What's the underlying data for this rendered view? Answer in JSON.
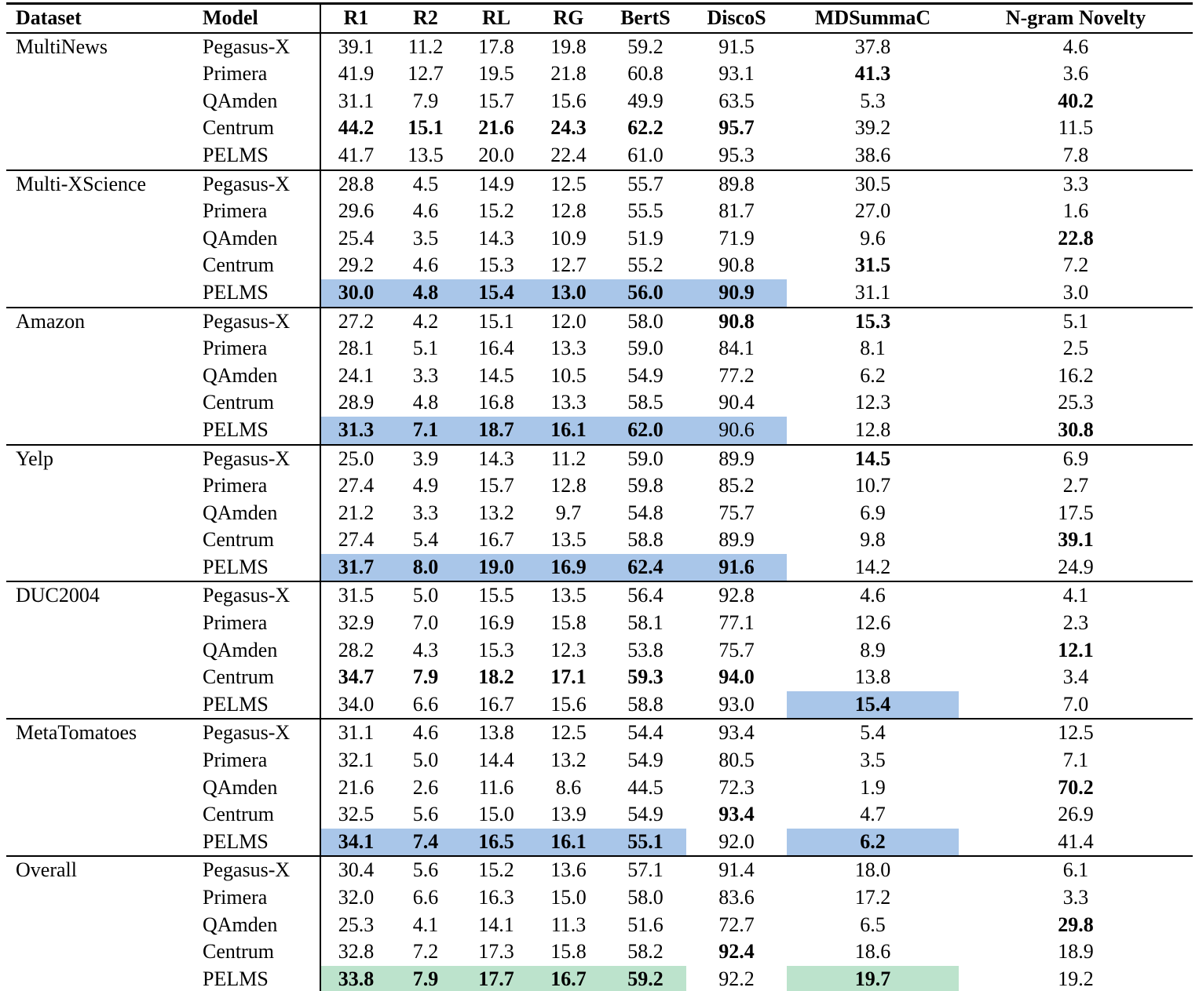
{
  "table": {
    "columns": [
      "Dataset",
      "Model",
      "R1",
      "R2",
      "RL",
      "RG",
      "BertS",
      "DiscoS",
      "MDSummaC",
      "N-gram Novelty"
    ],
    "highlight_colors": {
      "blue": "#a9c6e9",
      "green": "#bce3cc"
    },
    "groups": [
      {
        "dataset": "MultiNews",
        "rows": [
          {
            "model": "Pegasus-X",
            "values": [
              "39.1",
              "11.2",
              "17.8",
              "19.8",
              "59.2",
              "91.5",
              "37.8",
              "4.6"
            ],
            "bold": []
          },
          {
            "model": "Primera",
            "values": [
              "41.9",
              "12.7",
              "19.5",
              "21.8",
              "60.8",
              "93.1",
              "41.3",
              "3.6"
            ],
            "bold": [
              6
            ]
          },
          {
            "model": "QAmden",
            "values": [
              "31.1",
              "7.9",
              "15.7",
              "15.6",
              "49.9",
              "63.5",
              "5.3",
              "40.2"
            ],
            "bold": [
              7
            ]
          },
          {
            "model": "Centrum",
            "values": [
              "44.2",
              "15.1",
              "21.6",
              "24.3",
              "62.2",
              "95.7",
              "39.2",
              "11.5"
            ],
            "bold": [
              0,
              1,
              2,
              3,
              4,
              5
            ]
          },
          {
            "model": "PELMS",
            "values": [
              "41.7",
              "13.5",
              "20.0",
              "22.4",
              "61.0",
              "95.3",
              "38.6",
              "7.8"
            ],
            "bold": []
          }
        ]
      },
      {
        "dataset": "Multi-XScience",
        "rows": [
          {
            "model": "Pegasus-X",
            "values": [
              "28.8",
              "4.5",
              "14.9",
              "12.5",
              "55.7",
              "89.8",
              "30.5",
              "3.3"
            ],
            "bold": []
          },
          {
            "model": "Primera",
            "values": [
              "29.6",
              "4.6",
              "15.2",
              "12.8",
              "55.5",
              "81.7",
              "27.0",
              "1.6"
            ],
            "bold": []
          },
          {
            "model": "QAmden",
            "values": [
              "25.4",
              "3.5",
              "14.3",
              "10.9",
              "51.9",
              "71.9",
              "9.6",
              "22.8"
            ],
            "bold": [
              7
            ]
          },
          {
            "model": "Centrum",
            "values": [
              "29.2",
              "4.6",
              "15.3",
              "12.7",
              "55.2",
              "90.8",
              "31.5",
              "7.2"
            ],
            "bold": [
              6
            ]
          },
          {
            "model": "PELMS",
            "values": [
              "30.0",
              "4.8",
              "15.4",
              "13.0",
              "56.0",
              "90.9",
              "31.1",
              "3.0"
            ],
            "bold": [
              0,
              1,
              2,
              3,
              4,
              5
            ],
            "highlight": {
              "color": "blue",
              "cols": [
                0,
                1,
                2,
                3,
                4,
                5
              ]
            }
          }
        ]
      },
      {
        "dataset": "Amazon",
        "rows": [
          {
            "model": "Pegasus-X",
            "values": [
              "27.2",
              "4.2",
              "15.1",
              "12.0",
              "58.0",
              "90.8",
              "15.3",
              "5.1"
            ],
            "bold": [
              5,
              6
            ]
          },
          {
            "model": "Primera",
            "values": [
              "28.1",
              "5.1",
              "16.4",
              "13.3",
              "59.0",
              "84.1",
              "8.1",
              "2.5"
            ],
            "bold": []
          },
          {
            "model": "QAmden",
            "values": [
              "24.1",
              "3.3",
              "14.5",
              "10.5",
              "54.9",
              "77.2",
              "6.2",
              "16.2"
            ],
            "bold": []
          },
          {
            "model": "Centrum",
            "values": [
              "28.9",
              "4.8",
              "16.8",
              "13.3",
              "58.5",
              "90.4",
              "12.3",
              "25.3"
            ],
            "bold": []
          },
          {
            "model": "PELMS",
            "values": [
              "31.3",
              "7.1",
              "18.7",
              "16.1",
              "62.0",
              "90.6",
              "12.8",
              "30.8"
            ],
            "bold": [
              0,
              1,
              2,
              3,
              4,
              7
            ],
            "highlight": {
              "color": "blue",
              "cols": [
                0,
                1,
                2,
                3,
                4,
                5
              ]
            }
          }
        ]
      },
      {
        "dataset": "Yelp",
        "rows": [
          {
            "model": "Pegasus-X",
            "values": [
              "25.0",
              "3.9",
              "14.3",
              "11.2",
              "59.0",
              "89.9",
              "14.5",
              "6.9"
            ],
            "bold": [
              6
            ]
          },
          {
            "model": "Primera",
            "values": [
              "27.4",
              "4.9",
              "15.7",
              "12.8",
              "59.8",
              "85.2",
              "10.7",
              "2.7"
            ],
            "bold": []
          },
          {
            "model": "QAmden",
            "values": [
              "21.2",
              "3.3",
              "13.2",
              "9.7",
              "54.8",
              "75.7",
              "6.9",
              "17.5"
            ],
            "bold": []
          },
          {
            "model": "Centrum",
            "values": [
              "27.4",
              "5.4",
              "16.7",
              "13.5",
              "58.8",
              "89.9",
              "9.8",
              "39.1"
            ],
            "bold": [
              7
            ]
          },
          {
            "model": "PELMS",
            "values": [
              "31.7",
              "8.0",
              "19.0",
              "16.9",
              "62.4",
              "91.6",
              "14.2",
              "24.9"
            ],
            "bold": [
              0,
              1,
              2,
              3,
              4,
              5
            ],
            "highlight": {
              "color": "blue",
              "cols": [
                0,
                1,
                2,
                3,
                4,
                5
              ]
            }
          }
        ]
      },
      {
        "dataset": "DUC2004",
        "rows": [
          {
            "model": "Pegasus-X",
            "values": [
              "31.5",
              "5.0",
              "15.5",
              "13.5",
              "56.4",
              "92.8",
              "4.6",
              "4.1"
            ],
            "bold": []
          },
          {
            "model": "Primera",
            "values": [
              "32.9",
              "7.0",
              "16.9",
              "15.8",
              "58.1",
              "77.1",
              "12.6",
              "2.3"
            ],
            "bold": []
          },
          {
            "model": "QAmden",
            "values": [
              "28.2",
              "4.3",
              "15.3",
              "12.3",
              "53.8",
              "75.7",
              "8.9",
              "12.1"
            ],
            "bold": [
              7
            ]
          },
          {
            "model": "Centrum",
            "values": [
              "34.7",
              "7.9",
              "18.2",
              "17.1",
              "59.3",
              "94.0",
              "13.8",
              "3.4"
            ],
            "bold": [
              0,
              1,
              2,
              3,
              4,
              5
            ]
          },
          {
            "model": "PELMS",
            "values": [
              "34.0",
              "6.6",
              "16.7",
              "15.6",
              "58.8",
              "93.0",
              "15.4",
              "7.0"
            ],
            "bold": [
              6
            ],
            "highlight": {
              "color": "blue",
              "cols": [
                6
              ]
            }
          }
        ]
      },
      {
        "dataset": "MetaTomatoes",
        "rows": [
          {
            "model": "Pegasus-X",
            "values": [
              "31.1",
              "4.6",
              "13.8",
              "12.5",
              "54.4",
              "93.4",
              "5.4",
              "12.5"
            ],
            "bold": []
          },
          {
            "model": "Primera",
            "values": [
              "32.1",
              "5.0",
              "14.4",
              "13.2",
              "54.9",
              "80.5",
              "3.5",
              "7.1"
            ],
            "bold": []
          },
          {
            "model": "QAmden",
            "values": [
              "21.6",
              "2.6",
              "11.6",
              "8.6",
              "44.5",
              "72.3",
              "1.9",
              "70.2"
            ],
            "bold": [
              7
            ]
          },
          {
            "model": "Centrum",
            "values": [
              "32.5",
              "5.6",
              "15.0",
              "13.9",
              "54.9",
              "93.4",
              "4.7",
              "26.9"
            ],
            "bold": [
              5
            ]
          },
          {
            "model": "PELMS",
            "values": [
              "34.1",
              "7.4",
              "16.5",
              "16.1",
              "55.1",
              "92.0",
              "6.2",
              "41.4"
            ],
            "bold": [
              0,
              1,
              2,
              3,
              4,
              6
            ],
            "highlight": {
              "color": "blue",
              "cols": [
                0,
                1,
                2,
                3,
                4,
                6
              ]
            }
          }
        ]
      },
      {
        "dataset": "Overall",
        "rows": [
          {
            "model": "Pegasus-X",
            "values": [
              "30.4",
              "5.6",
              "15.2",
              "13.6",
              "57.1",
              "91.4",
              "18.0",
              "6.1"
            ],
            "bold": []
          },
          {
            "model": "Primera",
            "values": [
              "32.0",
              "6.6",
              "16.3",
              "15.0",
              "58.0",
              "83.6",
              "17.2",
              "3.3"
            ],
            "bold": []
          },
          {
            "model": "QAmden",
            "values": [
              "25.3",
              "4.1",
              "14.1",
              "11.3",
              "51.6",
              "72.7",
              "6.5",
              "29.8"
            ],
            "bold": [
              7
            ]
          },
          {
            "model": "Centrum",
            "values": [
              "32.8",
              "7.2",
              "17.3",
              "15.8",
              "58.2",
              "92.4",
              "18.6",
              "18.9"
            ],
            "bold": [
              5
            ]
          },
          {
            "model": "PELMS",
            "values": [
              "33.8",
              "7.9",
              "17.7",
              "16.7",
              "59.2",
              "92.2",
              "19.7",
              "19.2"
            ],
            "bold": [
              0,
              1,
              2,
              3,
              4,
              6
            ],
            "highlight": {
              "color": "green",
              "cols": [
                0,
                1,
                2,
                3,
                4,
                6
              ]
            }
          }
        ]
      }
    ]
  }
}
